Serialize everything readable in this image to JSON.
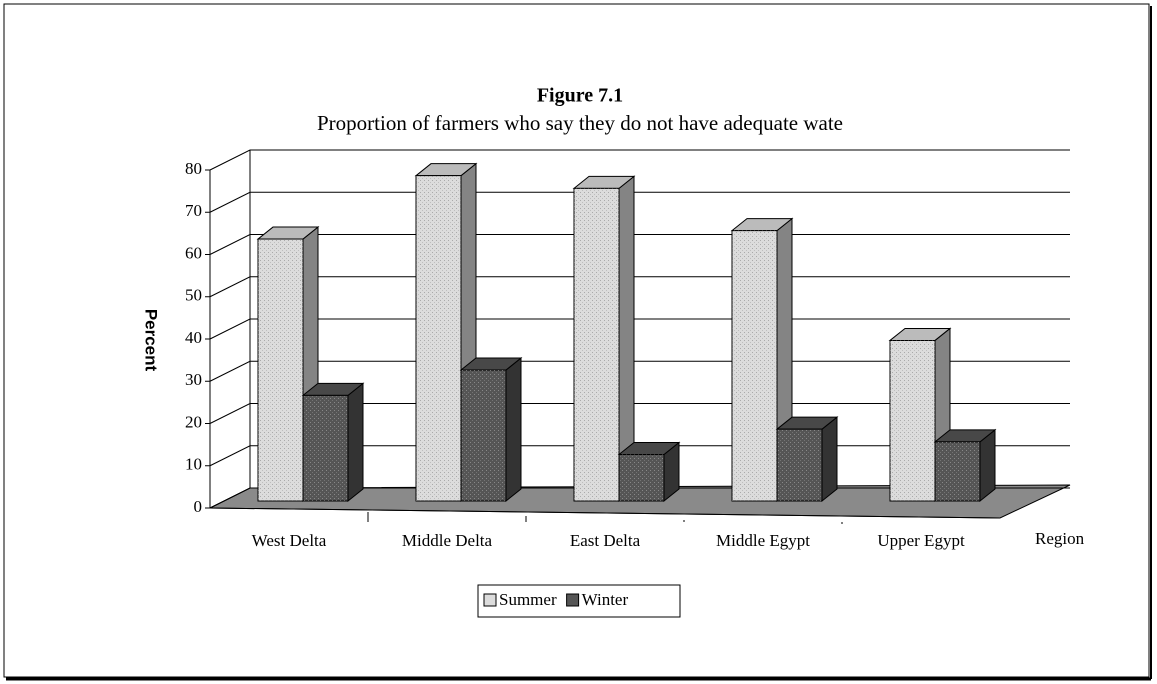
{
  "chart_data": {
    "type": "bar3d",
    "title": "Figure 7.1",
    "subtitle": "Proportion of farmers who say they do not have adequate wate",
    "y_label": "Percent",
    "x_label": "Region",
    "categories": [
      "West Delta",
      "Middle Delta",
      "East Delta",
      "Middle Egypt",
      "Upper Egypt"
    ],
    "series": [
      {
        "name": "Summer",
        "color": "#dcdcdc",
        "values": [
          62,
          77,
          74,
          64,
          38
        ]
      },
      {
        "name": "Winter",
        "color": "#555555",
        "values": [
          25,
          31,
          11,
          17,
          14
        ]
      }
    ],
    "ylim": [
      0,
      80
    ],
    "yticks": [
      0,
      10,
      20,
      30,
      40,
      50,
      60,
      70,
      80
    ],
    "grid": true,
    "legend": "bottom"
  }
}
